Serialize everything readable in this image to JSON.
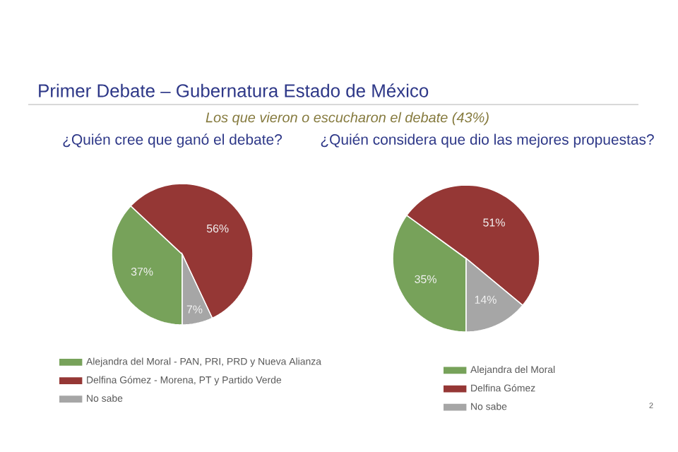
{
  "chart_data": [
    {
      "type": "other",
      "title": "Primer Debate – Gubernatura Estado de México",
      "subtitle": "Los que vieron o escucharon el debate (43%)",
      "annotations": [
        "2"
      ]
    },
    {
      "type": "pie",
      "title": "¿Quién cree que ganó el debate?",
      "categories": [
        "Alejandra del Moral - PAN, PRI, PRD y Nueva Alianza",
        "Delfina Gómez - Morena, PT y Partido Verde",
        "No sabe"
      ],
      "values": [
        37,
        56,
        7
      ],
      "value_labels": [
        "37%",
        "56%",
        "7%"
      ],
      "colors": [
        "#77a25a",
        "#953735",
        "#a6a6a6"
      ],
      "legend": "bottom"
    },
    {
      "type": "pie",
      "title": "¿Quién considera que dio las mejores propuestas?",
      "categories": [
        "Alejandra del Moral",
        "Delfina Gómez",
        "No sabe"
      ],
      "values": [
        35,
        51,
        14
      ],
      "value_labels": [
        "35%",
        "51%",
        "14%"
      ],
      "colors": [
        "#77a25a",
        "#953735",
        "#a6a6a6"
      ],
      "legend": "bottom"
    }
  ]
}
